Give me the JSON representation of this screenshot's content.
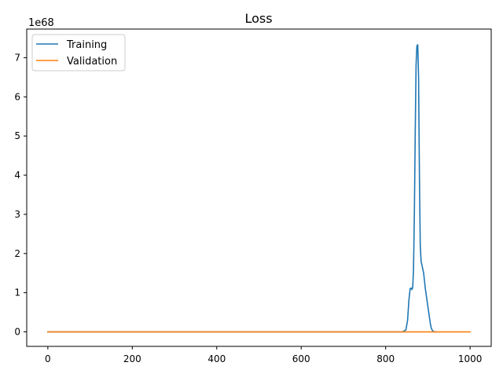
{
  "chart_data": {
    "type": "line",
    "title": "Loss",
    "xlabel": "",
    "ylabel": "",
    "y_scale_label": "1e68",
    "xlim": [
      -50,
      1050
    ],
    "ylim": [
      -0.37,
      7.73
    ],
    "x_ticks": [
      0,
      200,
      400,
      600,
      800,
      1000
    ],
    "x_tick_labels": [
      "0",
      "200",
      "400",
      "600",
      "800",
      "1000"
    ],
    "y_ticks": [
      0,
      1,
      2,
      3,
      4,
      5,
      6,
      7
    ],
    "y_tick_labels": [
      "0",
      "1",
      "2",
      "3",
      "4",
      "5",
      "6",
      "7"
    ],
    "grid": false,
    "legend_position": "upper-left",
    "series": [
      {
        "name": "Training",
        "color": "#1f77b4",
        "x": [
          0,
          200,
          400,
          600,
          800,
          840,
          848,
          852,
          855,
          858,
          860,
          862,
          864,
          866,
          868,
          870,
          872,
          874,
          876,
          878,
          880,
          882,
          884,
          886,
          888,
          890,
          892,
          894,
          896,
          898,
          900,
          902,
          904,
          906,
          908,
          910,
          912,
          914,
          916,
          918,
          920
        ],
        "y": [
          0,
          0,
          0,
          0,
          0,
          0,
          0.05,
          0.3,
          0.8,
          1.1,
          1.12,
          1.08,
          1.12,
          1.6,
          3.0,
          5.0,
          6.8,
          7.3,
          7.33,
          6.5,
          4.0,
          2.2,
          1.8,
          1.7,
          1.6,
          1.5,
          1.3,
          1.1,
          0.95,
          0.8,
          0.65,
          0.5,
          0.35,
          0.2,
          0.1,
          0.05,
          0.02,
          0.01,
          0,
          0,
          0
        ]
      },
      {
        "name": "Validation",
        "color": "#ff7f0e",
        "x": [
          0,
          1000
        ],
        "y": [
          0,
          0
        ]
      }
    ]
  }
}
